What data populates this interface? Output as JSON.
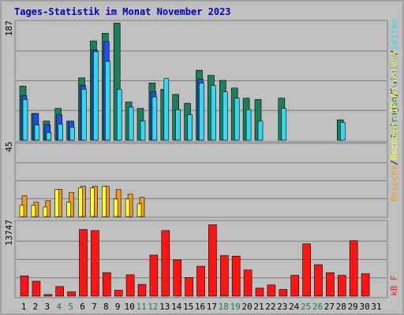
{
  "title": "Tages-Statistik im Monat November 2023",
  "days": [
    "1",
    "2",
    "3",
    "4",
    "5",
    "6",
    "7",
    "8",
    "9",
    "10",
    "11",
    "12",
    "13",
    "14",
    "15",
    "16",
    "17",
    "18",
    "19",
    "20",
    "21",
    "22",
    "23",
    "24",
    "25",
    "26",
    "27",
    "28",
    "29",
    "30",
    "31"
  ],
  "weekend_days": [
    "4",
    "5",
    "11",
    "12",
    "18",
    "19",
    "25",
    "26"
  ],
  "colors": {
    "anfragen": "#1c7e5a",
    "dateien": "#1e50e6",
    "seiten": "#32d7f5",
    "rechner": "#ffff32",
    "besuche": "#f59a1e",
    "kb": "#ff1414",
    "weekday_label": "#000000",
    "weekend_label": "#1c7e5a"
  },
  "panels": {
    "top": {
      "ymax": "187",
      "legend": [
        {
          "text": "Anfragen",
          "color": "#1c7e5a"
        },
        {
          "text": "/",
          "color": "#000000"
        },
        {
          "text": "Dateien",
          "color": "#1e50e6"
        },
        {
          "text": "/",
          "color": "#000000"
        },
        {
          "text": "Seiten",
          "color": "#32d7f5"
        }
      ]
    },
    "mid": {
      "ymax": "45",
      "legend": [
        {
          "text": "Besuche",
          "color": "#f59a1e"
        },
        {
          "text": "/",
          "color": "#000000"
        },
        {
          "text": "Rechner (IP-Adressen)",
          "color": "#ffff32"
        }
      ]
    },
    "bot": {
      "ymax": "13747",
      "legend": [
        {
          "text": "kB F",
          "color": "#ff1414"
        }
      ]
    }
  },
  "chart_data": [
    {
      "type": "bar",
      "title": "Tages-Statistik im Monat November 2023",
      "categories": [
        "1",
        "2",
        "3",
        "4",
        "5",
        "6",
        "7",
        "8",
        "9",
        "10",
        "11",
        "12",
        "13",
        "14",
        "15",
        "16",
        "17",
        "18",
        "19",
        "20",
        "21",
        "22",
        "23",
        "24",
        "25",
        "26",
        "27",
        "28",
        "29",
        "30",
        "31"
      ],
      "ylim": [
        0,
        187
      ],
      "series": [
        {
          "name": "Anfragen",
          "values": [
            85,
            42,
            30,
            50,
            30,
            98,
            156,
            168,
            184,
            60,
            50,
            90,
            80,
            72,
            58,
            110,
            102,
            94,
            82,
            66,
            64,
            0,
            66,
            0,
            0,
            0,
            0,
            32,
            0,
            0,
            0
          ]
        },
        {
          "name": "Dateien",
          "values": [
            70,
            42,
            24,
            40,
            30,
            86,
            142,
            155,
            0,
            0,
            0,
            76,
            0,
            0,
            0,
            96,
            0,
            0,
            0,
            0,
            0,
            0,
            0,
            0,
            0,
            0,
            0,
            0,
            0,
            0,
            0
          ]
        },
        {
          "name": "Seiten",
          "values": [
            64,
            24,
            12,
            25,
            20,
            80,
            139,
            124,
            80,
            52,
            30,
            68,
            97,
            48,
            40,
            90,
            86,
            76,
            66,
            48,
            30,
            0,
            50,
            0,
            0,
            0,
            0,
            28,
            0,
            0,
            0
          ]
        }
      ]
    },
    {
      "type": "bar",
      "categories": [
        "1",
        "2",
        "3",
        "4",
        "5",
        "6",
        "7",
        "8",
        "9",
        "10",
        "11",
        "12",
        "13",
        "14",
        "15",
        "16",
        "17",
        "18",
        "19",
        "20",
        "21",
        "22",
        "23",
        "24",
        "25",
        "26",
        "27",
        "28",
        "29",
        "30",
        "31"
      ],
      "ylim": [
        0,
        45
      ],
      "series": [
        {
          "name": "Besuche",
          "values": [
            13,
            9,
            10,
            17,
            15,
            19,
            19,
            19,
            17,
            14,
            12,
            0,
            0,
            0,
            0,
            0,
            0,
            0,
            0,
            0,
            0,
            0,
            0,
            0,
            0,
            0,
            0,
            0,
            0,
            0,
            0
          ]
        },
        {
          "name": "Rechner (IP-Adressen)",
          "values": [
            7,
            7,
            6,
            17,
            9,
            18,
            18,
            19,
            11,
            11,
            8,
            0,
            0,
            0,
            0,
            0,
            0,
            0,
            0,
            0,
            0,
            0,
            0,
            0,
            0,
            0,
            0,
            0,
            0,
            0,
            0
          ]
        }
      ]
    },
    {
      "type": "bar",
      "categories": [
        "1",
        "2",
        "3",
        "4",
        "5",
        "6",
        "7",
        "8",
        "9",
        "10",
        "11",
        "12",
        "13",
        "14",
        "15",
        "16",
        "17",
        "18",
        "19",
        "20",
        "21",
        "22",
        "23",
        "24",
        "25",
        "26",
        "27",
        "28",
        "29",
        "30",
        "31"
      ],
      "ylim": [
        0,
        13747
      ],
      "series": [
        {
          "name": "kB F",
          "values": [
            3800,
            2800,
            300,
            1800,
            800,
            12500,
            12300,
            4400,
            1100,
            4000,
            2200,
            7700,
            12300,
            6800,
            3500,
            5600,
            13400,
            7600,
            7500,
            4900,
            1500,
            2100,
            1250,
            3900,
            9800,
            5900,
            4400,
            3900,
            10400,
            4200,
            0
          ]
        }
      ]
    }
  ]
}
